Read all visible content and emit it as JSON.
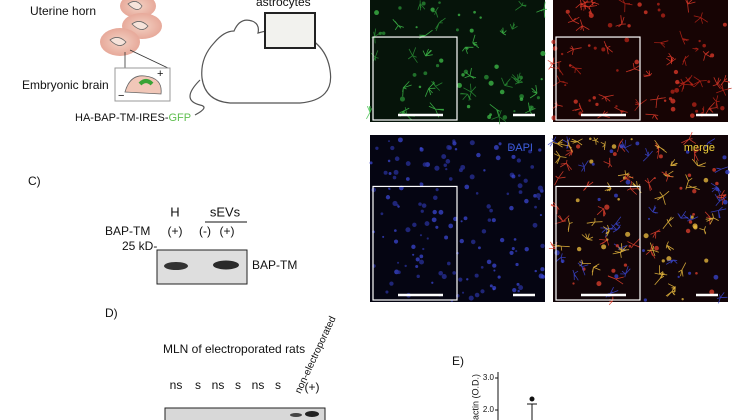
{
  "panel_a": {
    "uterine_horn": "Uterine horn",
    "embryonic_brain": "Embryonic brain",
    "construct": "HA-BAP-TM-IRES-",
    "construct_reporter": "GFP",
    "astrocytes": "astrocytes"
  },
  "panel_b": {
    "dapi": "DAPI",
    "merge": "merge"
  },
  "panel_c": {
    "label": "C)",
    "lane_h": "H",
    "group": "sEVs",
    "row_label": "BAP-TM",
    "lanes": [
      "(+)",
      "(-)",
      "(+)"
    ],
    "marker": "25 kD-",
    "band_label": "BAP-TM"
  },
  "panel_d": {
    "label": "D)",
    "title": "MLN of electroporated rats",
    "lanes": [
      "ns",
      "s",
      "ns",
      "s",
      "ns",
      "s",
      "non-electroporated",
      "(+)"
    ]
  },
  "panel_e": {
    "label": "E)",
    "y_axis_label": "actin (O.D.)",
    "yticks": [
      "3.0",
      "2.0"
    ]
  }
}
